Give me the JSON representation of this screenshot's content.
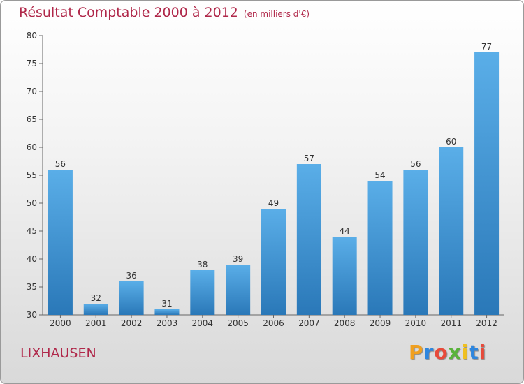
{
  "chart_data": {
    "type": "bar",
    "title": "Résultat Comptable 2000 à 2012",
    "subtitle": "(en milliers d'€)",
    "categories": [
      "2000",
      "2001",
      "2002",
      "2003",
      "2004",
      "2005",
      "2006",
      "2007",
      "2008",
      "2009",
      "2010",
      "2011",
      "2012"
    ],
    "values": [
      56,
      32,
      36,
      31,
      38,
      39,
      49,
      57,
      44,
      54,
      56,
      60,
      77
    ],
    "ylim": [
      30,
      80
    ],
    "yticks": [
      30,
      35,
      40,
      45,
      50,
      55,
      60,
      65,
      70,
      75,
      80
    ],
    "grid": false,
    "bar_color_top": "#5aaee8",
    "bar_color_bottom": "#2a78b8"
  },
  "place_name": "LIXHAUSEN",
  "logo": {
    "letters": [
      "P",
      "r",
      "o",
      "x",
      "i",
      "t",
      "i"
    ],
    "colors": [
      "#f0a020",
      "#2e86de",
      "#e84a3a",
      "#58b33a",
      "#f0c020",
      "#2e86de",
      "#e84a3a"
    ]
  }
}
